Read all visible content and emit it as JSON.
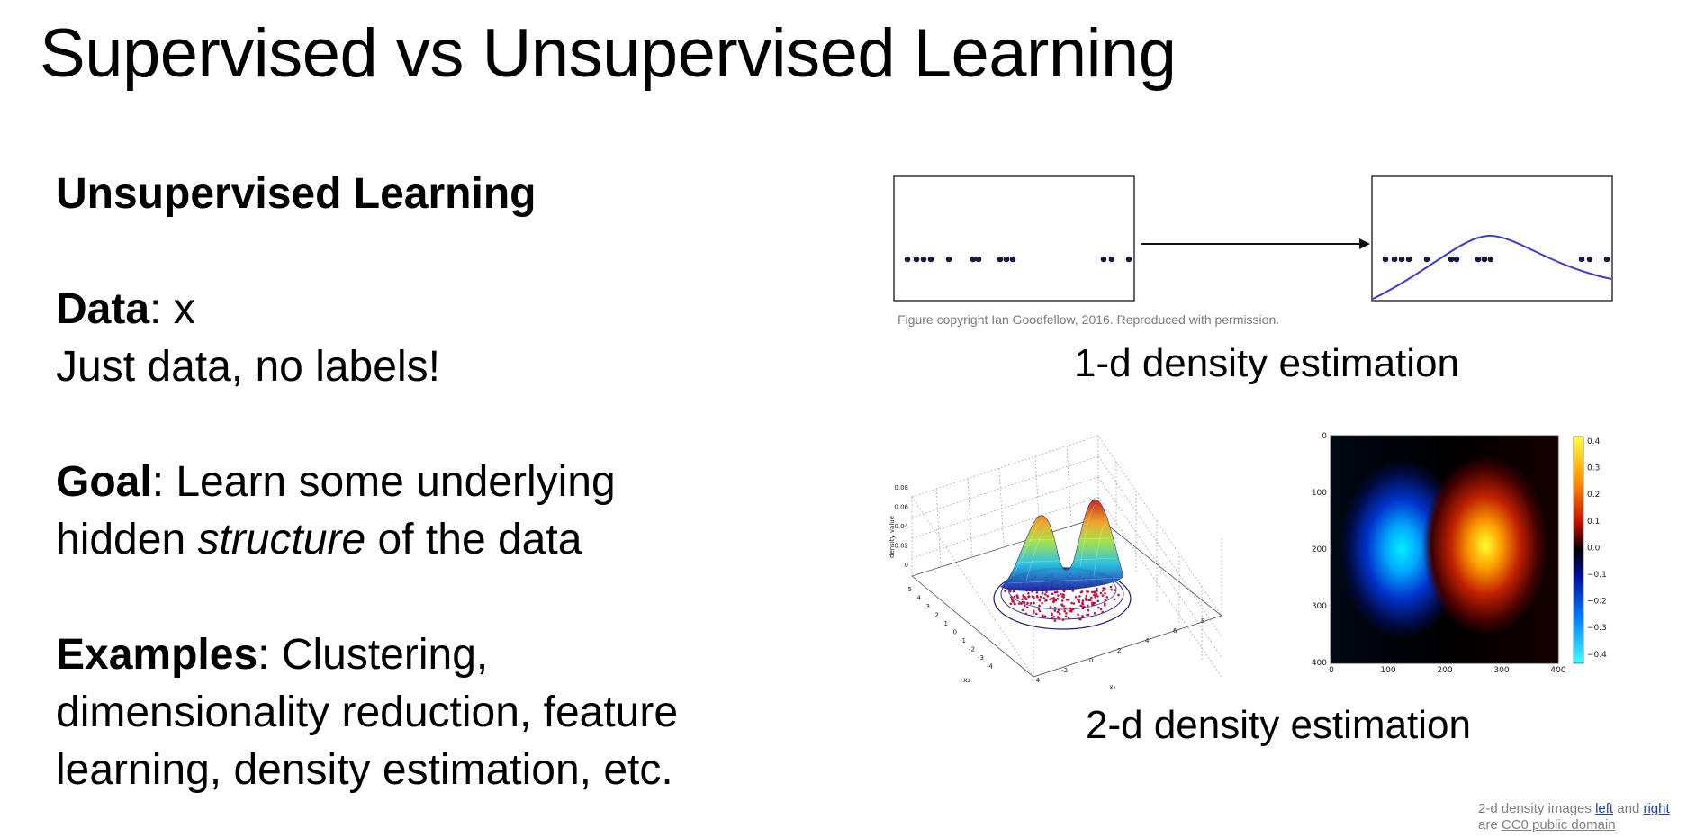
{
  "slide": {
    "title": "Supervised vs Unsupervised Learning"
  },
  "content": {
    "heading": "Unsupervised Learning",
    "data_label": "Data",
    "data_value": ": x",
    "data_note": "Just data, no labels!",
    "goal_label": "Goal",
    "goal_text_1": ": Learn some underlying",
    "goal_text_2a": "hidden ",
    "goal_text_2b": "structure",
    "goal_text_2c": " of the data",
    "examples_label": "Examples",
    "examples_text_1": ": Clustering,",
    "examples_text_2": "dimensionality reduction, feature",
    "examples_text_3": "learning, density estimation, etc."
  },
  "figures": {
    "copyright": "Figure copyright Ian Goodfellow, 2016. Reproduced with permission.",
    "caption_1d": "1-d density estimation",
    "caption_2d": "2-d density estimation",
    "surface_plot": {
      "z_ticks": [
        "0.08",
        "0.06",
        "0.04",
        "0.02",
        "0"
      ],
      "z_label": "density value",
      "x2_ticks": [
        "5",
        "4",
        "3",
        "2",
        "1",
        "0",
        "-1",
        "-2",
        "-3",
        "-4"
      ],
      "x2_label": "x₂",
      "x1_ticks": [
        "-4",
        "-2",
        "0",
        "2",
        "4",
        "6",
        "8"
      ],
      "x1_label": "x₁"
    },
    "heatmap": {
      "y_ticks": [
        "0",
        "100",
        "200",
        "300",
        "400"
      ],
      "x_ticks": [
        "0",
        "100",
        "200",
        "300",
        "400"
      ],
      "colorbar_ticks": [
        "0.4",
        "0.3",
        "0.2",
        "0.1",
        "0.0",
        "−0.1",
        "−0.2",
        "−0.3",
        "−0.4"
      ]
    }
  },
  "credit": {
    "line1_prefix": "2-d density images ",
    "left_link": "left",
    "middle": " and ",
    "right_link": "right",
    "line2_prefix": "are ",
    "cc0_link": "CC0 public domain"
  }
}
